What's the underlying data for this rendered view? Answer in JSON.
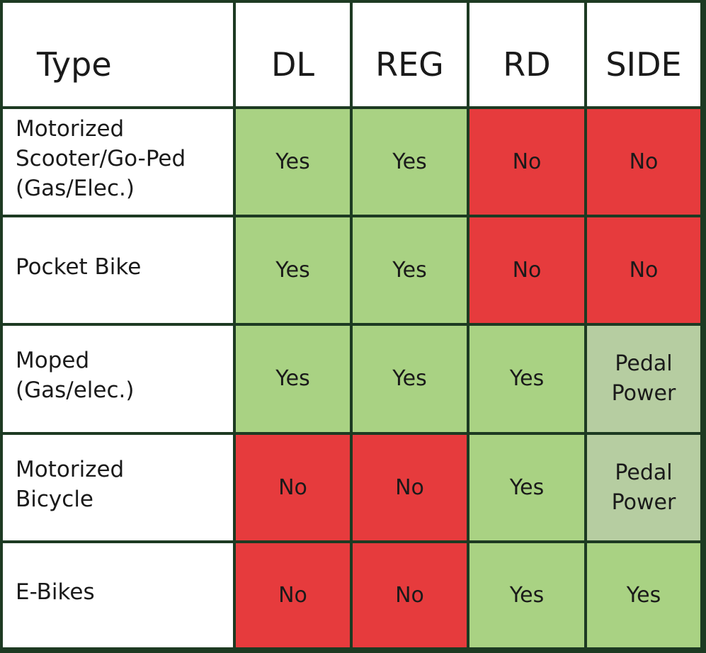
{
  "table": {
    "header": [
      "Type",
      "DL",
      "REG",
      "RD",
      "SIDE"
    ],
    "rows": [
      [
        "Motorized\nScooter/Go-Ped\n(Gas/Elec.)",
        "Yes",
        "Yes",
        "No",
        "No"
      ],
      [
        "Pocket Bike",
        "Yes",
        "Yes",
        "No",
        "No"
      ],
      [
        "Moped\n(Gas/elec.)",
        "Yes",
        "Yes",
        "Yes",
        "Pedal\nPower"
      ],
      [
        "Motorized\nBicycle",
        "No",
        "No",
        "Yes",
        "Pedal\nPower"
      ],
      [
        "E-Bikes",
        "No",
        "No",
        "Yes",
        "Yes"
      ]
    ],
    "cell_colors": [
      [
        "#ffffff",
        "#a9d283",
        "#a9d283",
        "#e63b3d",
        "#e63b3d"
      ],
      [
        "#ffffff",
        "#a9d283",
        "#a9d283",
        "#e63b3d",
        "#e63b3d"
      ],
      [
        "#ffffff",
        "#a9d283",
        "#a9d283",
        "#a9d283",
        "#b6cda1"
      ],
      [
        "#ffffff",
        "#e63b3d",
        "#e63b3d",
        "#a9d283",
        "#b6cda1"
      ],
      [
        "#ffffff",
        "#e63b3d",
        "#e63b3d",
        "#a9d283",
        "#a9d283"
      ]
    ]
  }
}
